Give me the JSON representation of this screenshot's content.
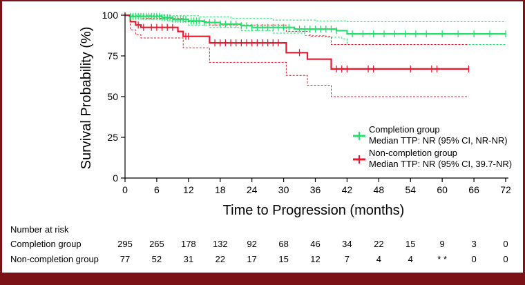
{
  "chart_data": {
    "type": "line",
    "subtype": "kaplan-meier",
    "title": "",
    "xlabel": "Time to Progression (months)",
    "ylabel": "Survival Probability (%)",
    "xlim": [
      0,
      72
    ],
    "ylim": [
      0,
      100
    ],
    "xticks": [
      0,
      6,
      12,
      18,
      24,
      30,
      36,
      42,
      48,
      54,
      60,
      66,
      72
    ],
    "yticks": [
      0,
      25,
      50,
      75,
      100
    ],
    "legend_position": "lower-right",
    "series": [
      {
        "name": "Completion group",
        "legend_line1": "Completion group",
        "legend_line2": "Median TTP: NR (95% CI, NR-NR)",
        "color": "#22e06a",
        "steps": [
          [
            0,
            100
          ],
          [
            0.8,
            99.3
          ],
          [
            7,
            98.5
          ],
          [
            9,
            97.5
          ],
          [
            12,
            96.5
          ],
          [
            15,
            95.5
          ],
          [
            18,
            94.5
          ],
          [
            22,
            93.5
          ],
          [
            24,
            92.5
          ],
          [
            32,
            91.5
          ],
          [
            40,
            90.5
          ],
          [
            42,
            88.5
          ],
          [
            72,
            88.5
          ]
        ],
        "ci_upper": [
          [
            0,
            100
          ],
          [
            8,
            99.6
          ],
          [
            14,
            99
          ],
          [
            20,
            98
          ],
          [
            28,
            97
          ],
          [
            36,
            96.5
          ],
          [
            42,
            96
          ],
          [
            72,
            96
          ]
        ],
        "ci_lower": [
          [
            0,
            100
          ],
          [
            3,
            97.5
          ],
          [
            8,
            96.5
          ],
          [
            12,
            94
          ],
          [
            16,
            92.5
          ],
          [
            22,
            90.5
          ],
          [
            28,
            89
          ],
          [
            34,
            87.5
          ],
          [
            38,
            86.5
          ],
          [
            41,
            85.5
          ],
          [
            42,
            82
          ],
          [
            72,
            82
          ]
        ],
        "censors": [
          1,
          1.5,
          2,
          2.5,
          3,
          3.5,
          4,
          4.5,
          5,
          5.5,
          6,
          6.5,
          7,
          7.5,
          8,
          8.5,
          9,
          9.5,
          10,
          10.5,
          11,
          11.5,
          12.5,
          13,
          13.5,
          14,
          15,
          16,
          17,
          18,
          19,
          20,
          21,
          22,
          23,
          24,
          25,
          26,
          27,
          28,
          29,
          30,
          31,
          33,
          34,
          35,
          36,
          37,
          38,
          39,
          40,
          43,
          45,
          47,
          49,
          51,
          53,
          55,
          57,
          60,
          63,
          66,
          69,
          72
        ]
      },
      {
        "name": "Non-completion group",
        "legend_line1": "Non-completion group",
        "legend_line2": "Median TTP: NR (95% CI, 39.7-NR)",
        "color": "#e8182e",
        "steps": [
          [
            0,
            100
          ],
          [
            1,
            96
          ],
          [
            2,
            94
          ],
          [
            3,
            92.5
          ],
          [
            10,
            90
          ],
          [
            11,
            87
          ],
          [
            16,
            83
          ],
          [
            30.5,
            77
          ],
          [
            34.5,
            73
          ],
          [
            39,
            67
          ],
          [
            65,
            67
          ]
        ],
        "ci_upper": [
          [
            0,
            100
          ],
          [
            1.5,
            99
          ],
          [
            3,
            98
          ],
          [
            11,
            96
          ],
          [
            16,
            94
          ],
          [
            30.5,
            90
          ],
          [
            35,
            87
          ],
          [
            39,
            82
          ],
          [
            65,
            82
          ]
        ],
        "ci_lower": [
          [
            0,
            100
          ],
          [
            1,
            91
          ],
          [
            2,
            88
          ],
          [
            3,
            86
          ],
          [
            11,
            80
          ],
          [
            16,
            71
          ],
          [
            30.5,
            63
          ],
          [
            34.5,
            57
          ],
          [
            39,
            50
          ],
          [
            65,
            50
          ]
        ],
        "censors": [
          2.5,
          3.5,
          5,
          6,
          7,
          8,
          9,
          11.5,
          12,
          17,
          18,
          19,
          20,
          21,
          22,
          23,
          24,
          25,
          26,
          27,
          28,
          29,
          33,
          40,
          41,
          42,
          46,
          47,
          54,
          58,
          59,
          65
        ]
      }
    ]
  },
  "risk_table": {
    "title": "Number at risk",
    "rows": [
      {
        "label": "Completion group",
        "values": [
          "295",
          "265",
          "178",
          "132",
          "92",
          "68",
          "46",
          "34",
          "22",
          "15",
          "9",
          "3",
          "0"
        ]
      },
      {
        "label": "Non-completion group",
        "values": [
          "77",
          "52",
          "31",
          "22",
          "17",
          "15",
          "12",
          "7",
          "4",
          "4",
          "* *",
          "0",
          "0"
        ]
      }
    ]
  }
}
